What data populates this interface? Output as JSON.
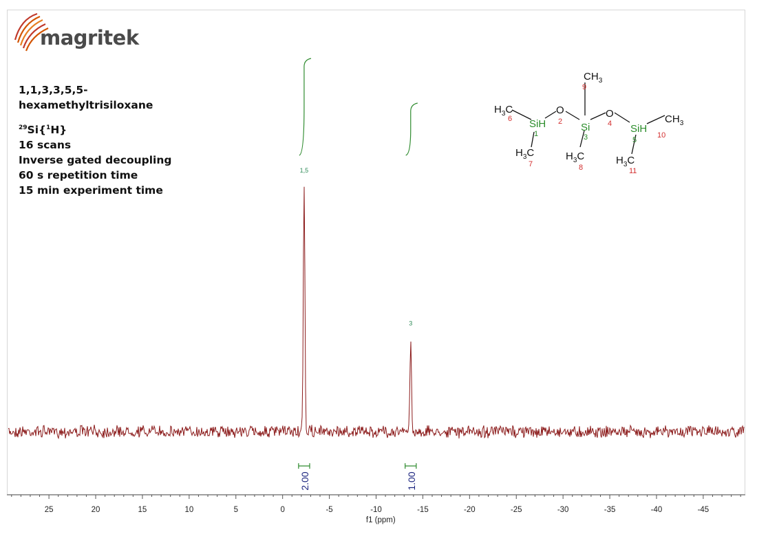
{
  "logo": {
    "name": "magritek",
    "icon": "magritek-swoosh-logo",
    "color": "#c0392b"
  },
  "sample": {
    "name_line1": "1,1,3,3,5,5-",
    "name_line2": "hexamethyltrisiloxane",
    "nucleus_sup1": "29",
    "nucleus_base": "Si{",
    "nucleus_sup2": "1",
    "nucleus_end": "H}",
    "scans": "16 scans",
    "decoupling": "Inverse gated decoupling",
    "repetition": "60 s repetition time",
    "experiment": "15 min experiment time"
  },
  "chart_data": {
    "type": "line",
    "xlabel": "f1 (ppm)",
    "xlim": [
      29.5,
      -49.5
    ],
    "x_reversed": true,
    "xticks": [
      25,
      20,
      15,
      10,
      5,
      0,
      -5,
      -10,
      -15,
      -20,
      -25,
      -30,
      -35,
      -40,
      -45
    ],
    "grid": false,
    "series": [
      {
        "color": "#8b1a1a",
        "peaks": [
          {
            "ppm": -2.3,
            "relative_height": 1.0,
            "label": "1,5"
          },
          {
            "ppm": -13.7,
            "relative_height": 0.37,
            "label": "3"
          }
        ]
      }
    ],
    "integrals": [
      {
        "ppm_from": -2.0,
        "ppm_to": -2.6,
        "value": "2.00"
      },
      {
        "ppm_from": -13.4,
        "ppm_to": -14.0,
        "value": "1.00"
      }
    ],
    "colors": {
      "spectrum": "#8b1a1a",
      "integral": "#2e8b2e",
      "integral_value": "#1a237e",
      "peak_label": "#2e8b57"
    }
  },
  "molecule": {
    "atoms": [
      "CH3",
      "O",
      "O",
      "Si",
      "SiH",
      "SiH",
      "H3C",
      "H3C",
      "H3C",
      "H3C",
      "CH3"
    ],
    "h": "H",
    "c": "C",
    "sub3": "3",
    "numbers": [
      "1",
      "2",
      "3",
      "4",
      "5",
      "6",
      "7",
      "8",
      "9",
      "10",
      "11"
    ],
    "colors": {
      "si": "#2a8c2a",
      "o": "#111111",
      "c": "#111111",
      "number": "#d32f2f"
    }
  }
}
